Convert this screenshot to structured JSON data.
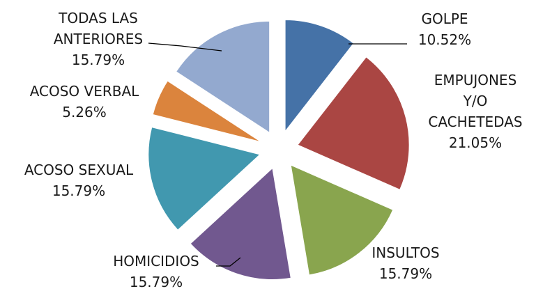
{
  "chart_data": {
    "type": "pie",
    "title": "",
    "exploded": true,
    "legend": "none",
    "slices": [
      {
        "name": "GOLPE",
        "label_lines": [
          "GOLPE"
        ],
        "percent_text": "10.52%",
        "value": 10.52,
        "color": "#4572A7"
      },
      {
        "name": "EMPUJONES Y/O CACHETEDAS",
        "label_lines": [
          "EMPUJONES",
          "Y/O",
          "CACHETEDAS"
        ],
        "percent_text": "21.05%",
        "value": 21.05,
        "color": "#AA4643"
      },
      {
        "name": "INSULTOS",
        "label_lines": [
          "INSULTOS"
        ],
        "percent_text": "15.79%",
        "value": 15.79,
        "color": "#89A54E"
      },
      {
        "name": "HOMICIDIOS",
        "label_lines": [
          "HOMICIDIOS"
        ],
        "percent_text": "15.79%",
        "value": 15.79,
        "color": "#71588F"
      },
      {
        "name": "ACOSO SEXUAL",
        "label_lines": [
          "ACOSO SEXUAL"
        ],
        "percent_text": "15.79%",
        "value": 15.79,
        "color": "#4198AF"
      },
      {
        "name": "ACOSO VERBAL",
        "label_lines": [
          "ACOSO VERBAL"
        ],
        "percent_text": "5.26%",
        "value": 5.26,
        "color": "#DB843D"
      },
      {
        "name": "TODAS LAS ANTERIORES",
        "label_lines": [
          "TODAS LAS",
          "ANTERIORES"
        ],
        "percent_text": "15.79%",
        "value": 15.79,
        "color": "#93A9CF"
      }
    ]
  }
}
